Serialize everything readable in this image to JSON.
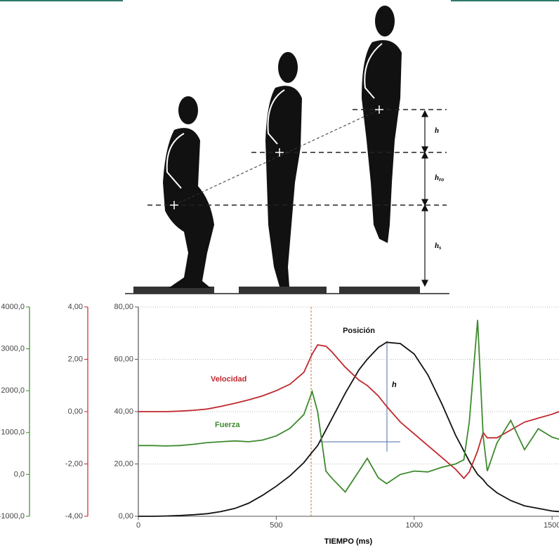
{
  "diagram": {
    "labels": [
      {
        "main": "h"
      },
      {
        "main": "h",
        "sub": "ro"
      },
      {
        "main": "h",
        "sub": "s"
      }
    ]
  },
  "chart_data": {
    "type": "line",
    "x": [
      0,
      50,
      100,
      150,
      200,
      250,
      300,
      350,
      400,
      450,
      500,
      550,
      600,
      630,
      650,
      680,
      700,
      750,
      800,
      830,
      870,
      900,
      950,
      1000,
      1050,
      1100,
      1150,
      1180,
      1200,
      1230,
      1250,
      1265,
      1300,
      1350,
      1400,
      1450,
      1500,
      1525
    ],
    "xlim": [
      0,
      1525
    ],
    "xticks": [
      0,
      500,
      1000,
      1500
    ],
    "xlabel": "TIEMPO (ms)",
    "ylim": [
      0,
      80
    ],
    "yticks": [
      {
        "value": 0,
        "label": "0,00"
      },
      {
        "value": 20,
        "label": "20,00"
      },
      {
        "value": 40,
        "label": "40,00"
      },
      {
        "value": 60,
        "label": "60,00"
      },
      {
        "value": 80,
        "label": "80,00"
      }
    ],
    "y2lim": [
      -4,
      4
    ],
    "y2ticks": [
      {
        "value": -4,
        "label": "-4,00"
      },
      {
        "value": -2,
        "label": "-2,00"
      },
      {
        "value": 0,
        "label": "0,00"
      },
      {
        "value": 2,
        "label": "2,00"
      },
      {
        "value": 4,
        "label": "4,00"
      }
    ],
    "y3lim": [
      -1000,
      4000
    ],
    "y3ticks": [
      {
        "value": -1000,
        "label": "-1000,0"
      },
      {
        "value": 0,
        "label": "0,0"
      },
      {
        "value": 1000,
        "label": "1000,0"
      },
      {
        "value": 2000,
        "label": "2000,0"
      },
      {
        "value": 3000,
        "label": "3000,0"
      },
      {
        "value": 4000,
        "label": "4000,0"
      }
    ],
    "grid": true,
    "series": [
      {
        "name": "Posición",
        "color": "#111111",
        "axis": "y",
        "values": [
          0,
          0,
          0.1,
          0.3,
          0.6,
          1,
          1.8,
          3,
          5,
          8,
          11.5,
          15.5,
          20.5,
          24.5,
          27,
          33,
          37,
          47,
          56,
          60,
          64.5,
          66.5,
          66,
          62,
          54,
          43,
          31,
          25,
          21,
          16,
          14,
          12,
          9,
          6,
          4,
          3,
          2,
          1.8
        ]
      },
      {
        "name": "Velocidad",
        "color": "#c0282d",
        "axis": "y2",
        "values": [
          0,
          0,
          0,
          0.02,
          0.05,
          0.1,
          0.2,
          0.32,
          0.45,
          0.6,
          0.8,
          1.05,
          1.5,
          2.2,
          2.55,
          2.5,
          2.3,
          1.7,
          1.2,
          1.0,
          0.6,
          0.2,
          -0.4,
          -0.85,
          -1.3,
          -1.75,
          -2.2,
          -2.55,
          -2.3,
          -1.5,
          -0.8,
          -1,
          -1,
          -0.7,
          -0.4,
          -0.25,
          -0.1,
          0
        ]
      },
      {
        "name": "Fuerza",
        "color": "#3e8a2e",
        "axis": "y3",
        "values": [
          690,
          690,
          680,
          690,
          720,
          760,
          780,
          800,
          780,
          820,
          920,
          1100,
          1430,
          1980,
          1500,
          80,
          -80,
          -420,
          80,
          385,
          -80,
          -220,
          0,
          80,
          60,
          170,
          250,
          350,
          1260,
          3690,
          920,
          80,
          750,
          1290,
          590,
          1090,
          890,
          840
        ]
      }
    ],
    "annotations": [
      {
        "text": "h"
      }
    ]
  }
}
